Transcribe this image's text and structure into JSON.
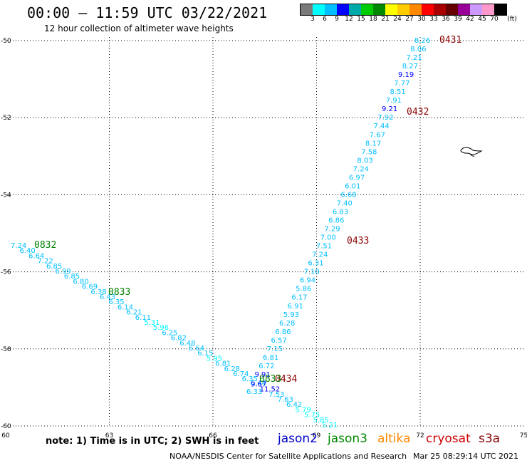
{
  "header": {
    "title": "00:00 – 11:59 UTC 03/22/2021",
    "subtitle": "12 hour collection of altimeter wave heights"
  },
  "colorbar": {
    "unit_label": "(ft)",
    "labels": [
      "3",
      "6",
      "9",
      "12",
      "15",
      "18",
      "21",
      "24",
      "27",
      "30",
      "33",
      "36",
      "39",
      "42",
      "45",
      "70"
    ],
    "colors": [
      "#7a7a7a",
      "#00ffff",
      "#00bfff",
      "#0000ff",
      "#00aaaa",
      "#00cc00",
      "#008800",
      "#ffff00",
      "#ffcc00",
      "#ff8800",
      "#ff0000",
      "#aa0000",
      "#660000",
      "#990099",
      "#cc99ff",
      "#ff99cc",
      "#000000"
    ]
  },
  "map": {
    "lon_labels": [
      "60",
      "63",
      "66",
      "69",
      "72",
      "75"
    ],
    "lat_labels": [
      "-50",
      "-52",
      "-54",
      "-56",
      "-58",
      "-60"
    ],
    "passes": [
      {
        "label": "0431",
        "color": "#8b0000"
      },
      {
        "label": "0432",
        "color": "#8b0000"
      },
      {
        "label": "0433",
        "color": "#8b0000"
      },
      {
        "label": "0434",
        "color": "#8b0000"
      },
      {
        "label": "0832",
        "color": "#008000"
      },
      {
        "label": "0833",
        "color": "#008000"
      },
      {
        "label": "0833",
        "color": "#008000"
      }
    ],
    "track1_values": [
      "8.26",
      "8.06",
      "7.21",
      "8.27",
      "9.19",
      "7.77",
      "8.51",
      "7.91",
      "9.21",
      "7.92",
      "7.44",
      "7.67",
      "8.17",
      "7.58",
      "8.03",
      "7.24",
      "6.97",
      "6.01",
      "6.68",
      "7.40",
      "6.83",
      "6.86",
      "7.29",
      "7.00",
      "7.51",
      "7.24",
      "6.31",
      "7.10",
      "6.94",
      "5.86",
      "6.17",
      "6.91",
      "5.93",
      "6.28",
      "6.86",
      "6.57",
      "7.15",
      "6.81",
      "6.72",
      "9.91",
      "6.44",
      "6.33"
    ],
    "track1_colors": [
      "#00bfff",
      "#00bfff",
      "#00bfff",
      "#00bfff",
      "#0000ff",
      "#00bfff",
      "#00bfff",
      "#00bfff",
      "#0000ff",
      "#00bfff",
      "#00bfff",
      "#00bfff",
      "#00bfff",
      "#00bfff",
      "#00bfff",
      "#00bfff",
      "#00bfff",
      "#00bfff",
      "#00bfff",
      "#00bfff",
      "#00bfff",
      "#00bfff",
      "#00bfff",
      "#00bfff",
      "#00bfff",
      "#00bfff",
      "#00bfff",
      "#00bfff",
      "#00bfff",
      "#00bfff",
      "#00bfff",
      "#00bfff",
      "#00bfff",
      "#00bfff",
      "#00bfff",
      "#00bfff",
      "#00bfff",
      "#00bfff",
      "#00bfff",
      "#0000ff",
      "#00bfff",
      "#00bfff"
    ],
    "track2_values": [
      "7.24",
      "6.40",
      "6.64",
      "7.22",
      "6.85",
      "6.99",
      "6.85",
      "6.80",
      "6.69",
      "6.38",
      "6.43",
      "6.35",
      "6.14",
      "6.21",
      "6.11",
      "5.31",
      "5.96",
      "6.25",
      "6.82",
      "6.48",
      "6.64",
      "6.15",
      "5.95",
      "6.81",
      "6.28",
      "6.74",
      "6.35",
      "9.67",
      "11.52",
      "7.53",
      "7.63",
      "6.42",
      "5.79",
      "5.75",
      "5.85",
      "5.21"
    ],
    "track2_colors": [
      "#00bfff",
      "#00bfff",
      "#00bfff",
      "#00bfff",
      "#00bfff",
      "#00bfff",
      "#00bfff",
      "#00bfff",
      "#00bfff",
      "#00bfff",
      "#00bfff",
      "#00bfff",
      "#00bfff",
      "#00bfff",
      "#00bfff",
      "#00ffff",
      "#00ffff",
      "#00bfff",
      "#00bfff",
      "#00bfff",
      "#00bfff",
      "#00bfff",
      "#00ffff",
      "#00bfff",
      "#00bfff",
      "#00bfff",
      "#00bfff",
      "#0000ff",
      "#0000ff",
      "#00bfff",
      "#00bfff",
      "#00bfff",
      "#00ffff",
      "#00ffff",
      "#00ffff",
      "#00ffff"
    ]
  },
  "footer": {
    "note": "note:  1) Time is in UTC;  2) SWH is in feet",
    "legend": [
      {
        "label": "jason2",
        "color": "#0000cc"
      },
      {
        "label": "jason3",
        "color": "#008800"
      },
      {
        "label": "altika",
        "color": "#ff8800"
      },
      {
        "label": "cryosat",
        "color": "#cc0000"
      },
      {
        "label": "s3a",
        "color": "#880000"
      }
    ],
    "credit": "NOAA/NESDIS Center for Satellite Applications and Research",
    "timestamp": "Mar 25 08:29:14 UTC 2021"
  }
}
